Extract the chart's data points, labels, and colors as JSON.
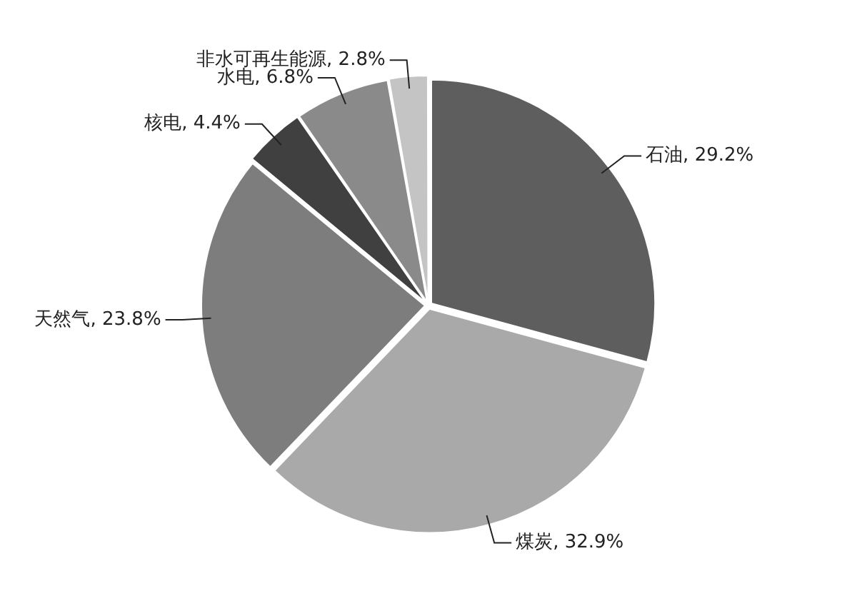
{
  "chart_data": {
    "type": "pie",
    "categories": [
      "石油",
      "煤炭",
      "天然气",
      "核电",
      "水电",
      "非水可再生能源"
    ],
    "values": [
      29.2,
      32.9,
      23.8,
      4.4,
      6.8,
      2.8
    ],
    "value_labels": [
      "29.2%",
      "32.9%",
      "23.8%",
      "4.4%",
      "6.8%",
      "2.8%"
    ],
    "colors": [
      "#5e5e5e",
      "#a9a9a9",
      "#7d7d7d",
      "#404040",
      "#8a8a8a",
      "#c4c4c4"
    ],
    "legend": false
  }
}
